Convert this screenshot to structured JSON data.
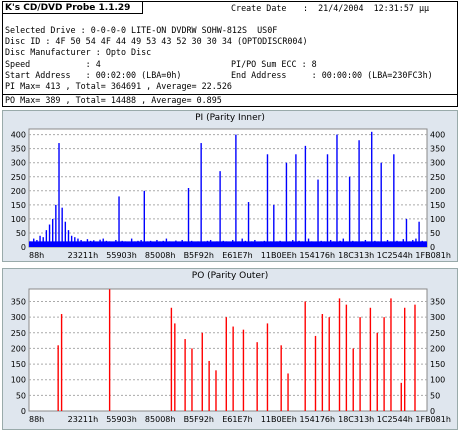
{
  "app_title": "K's CD/DVD Probe 1.1.29",
  "create_date_label": "Create Date",
  "create_date_value": ":  21/4/2004  12:31:57 µµ",
  "rows": {
    "drive": "Selected Drive : 0-0-0-0 LITE-ON DVDRW SOHW-812S  US0F",
    "disc_id": "Disc ID : 4F 50 54 4F 44 49 53 43 52 30 30 34 (OPTODISCR004)",
    "manufacturer": "Disc Manufacturer : Opto Disc",
    "speed": "Speed           : 4",
    "sum_ecc": "PI/PO Sum ECC : 8",
    "start": "Start Address   : 00:02:00 (LBA=0h)",
    "end": "End Address     : 00:00:00 (LBA=230FC3h)",
    "pi_stats": "PI Max= 413 , Total= 364691 , Average= 22.526",
    "po_stats": "PO Max= 389 , Total= 14488 , Average= 0.895"
  },
  "chart_data": [
    {
      "type": "bar",
      "title": "PI (Parity Inner)",
      "ylim": [
        0,
        420
      ],
      "yticks": [
        0,
        50,
        100,
        150,
        200,
        250,
        300,
        350,
        400
      ],
      "xtick_labels": [
        "88h",
        "23211h",
        "55903h",
        "85008h",
        "B5F92h",
        "E61E7h",
        "11B0EEh",
        "154176h",
        "18C313h",
        "1C2544h",
        "1FB081h"
      ],
      "color": "#0000ff",
      "baseline": 20,
      "values": [
        20,
        30,
        25,
        40,
        35,
        60,
        80,
        100,
        150,
        370,
        140,
        90,
        60,
        40,
        35,
        30,
        25,
        20,
        28,
        22,
        24,
        18,
        26,
        30,
        22,
        20,
        19,
        25,
        180,
        22,
        20,
        18,
        30,
        20,
        22,
        25,
        200,
        20,
        22,
        18,
        25,
        20,
        22,
        30,
        20,
        19,
        23,
        18,
        25,
        20,
        210,
        22,
        18,
        20,
        370,
        20,
        22,
        25,
        18,
        20,
        270,
        22,
        20,
        19,
        25,
        400,
        20,
        30,
        22,
        160,
        20,
        25,
        18,
        20,
        22,
        330,
        20,
        150,
        20,
        22,
        18,
        300,
        20,
        25,
        330,
        22,
        20,
        360,
        30,
        20,
        18,
        240,
        22,
        20,
        330,
        25,
        20,
        400,
        22,
        30,
        20,
        250,
        22,
        20,
        380,
        20,
        25,
        18,
        410,
        22,
        20,
        300,
        20,
        25,
        20,
        330,
        22,
        20,
        28,
        100,
        20,
        25,
        30,
        90,
        22,
        20
      ],
      "grid": true
    },
    {
      "type": "bar",
      "title": "PO (Parity Outer)",
      "ylim": [
        0,
        390
      ],
      "yticks": [
        0,
        50,
        100,
        150,
        200,
        250,
        300,
        350
      ],
      "xtick_labels": [
        "88h",
        "23211h",
        "55903h",
        "85008h",
        "B5F92h",
        "E61E7h",
        "11B0EEh",
        "154176h",
        "18C313h",
        "1C2544h",
        "1FB081h"
      ],
      "color": "#ff0000",
      "values": [
        0,
        0,
        0,
        0,
        0,
        0,
        0,
        0,
        210,
        310,
        0,
        0,
        0,
        0,
        0,
        0,
        0,
        0,
        0,
        0,
        0,
        0,
        0,
        389,
        0,
        0,
        0,
        0,
        0,
        0,
        0,
        0,
        0,
        0,
        0,
        0,
        0,
        0,
        0,
        0,
        0,
        330,
        280,
        0,
        0,
        230,
        0,
        200,
        0,
        0,
        250,
        0,
        160,
        0,
        130,
        0,
        0,
        300,
        0,
        270,
        0,
        0,
        260,
        0,
        0,
        0,
        220,
        0,
        0,
        280,
        0,
        0,
        0,
        210,
        0,
        120,
        0,
        0,
        0,
        0,
        350,
        0,
        0,
        240,
        0,
        310,
        0,
        300,
        0,
        0,
        360,
        0,
        340,
        0,
        200,
        0,
        300,
        0,
        0,
        330,
        0,
        250,
        0,
        300,
        0,
        360,
        0,
        0,
        90,
        330,
        0,
        0,
        340,
        0,
        0,
        0
      ],
      "grid": true
    }
  ]
}
